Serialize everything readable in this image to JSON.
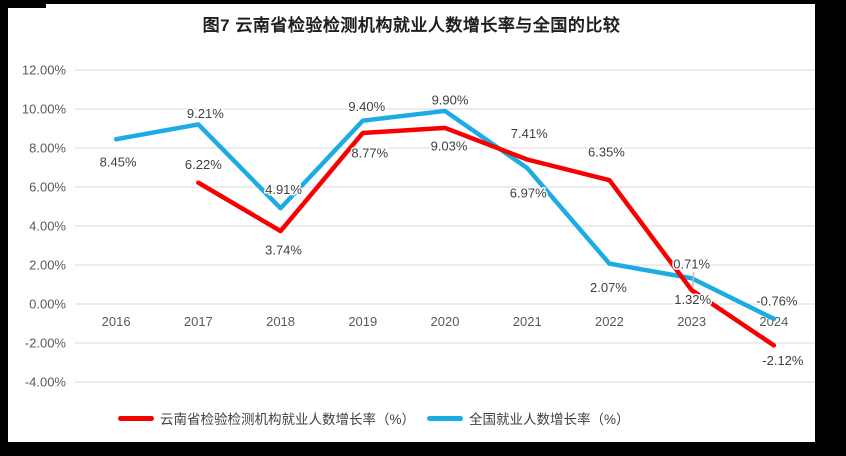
{
  "colors": {
    "background": "#FFFFFF",
    "border": "#000000",
    "grid": "#D9D9D9",
    "axis_text": "#595959",
    "label_text": "#3F3F3F",
    "leader": "#BFBFBF",
    "series_yunnan": "#F80000",
    "series_national": "#1CACE3"
  },
  "chart_data": {
    "type": "line",
    "title": "图7  云南省检验检测机构就业人数增长率与全国的比较",
    "categories": [
      "2016",
      "2017",
      "2018",
      "2019",
      "2020",
      "2021",
      "2022",
      "2023",
      "2024"
    ],
    "series": [
      {
        "name": "全国就业人数增长率（%）",
        "key": "national",
        "color": "#1CACE3",
        "values": [
          8.45,
          9.21,
          4.91,
          9.4,
          9.9,
          6.97,
          2.07,
          1.32,
          -0.76
        ],
        "labels": [
          "8.45%",
          "9.21%",
          "4.91%",
          "9.40%",
          "9.90%",
          "6.97%",
          "2.07%",
          "1.32%",
          "-0.76%"
        ]
      },
      {
        "name": "云南省检验检测机构就业人数增长率（%）",
        "key": "yunnan",
        "color": "#F80000",
        "values": [
          null,
          6.22,
          3.74,
          8.77,
          9.03,
          7.41,
          6.35,
          0.71,
          -2.12
        ],
        "labels": [
          "",
          "6.22%",
          "3.74%",
          "8.77%",
          "9.03%",
          "7.41%",
          "6.35%",
          "0.71%",
          "-2.12%"
        ]
      }
    ],
    "y_tick_labels": [
      "12.00%",
      "10.00%",
      "8.00%",
      "6.00%",
      "4.00%",
      "2.00%",
      "0.00%",
      "-2.00%",
      "-4.00%"
    ],
    "y_tick_values": [
      12,
      10,
      8,
      6,
      4,
      2,
      0,
      -2,
      -4
    ],
    "ylim": [
      -4,
      12
    ],
    "grid": true,
    "legend_position": "bottom"
  }
}
